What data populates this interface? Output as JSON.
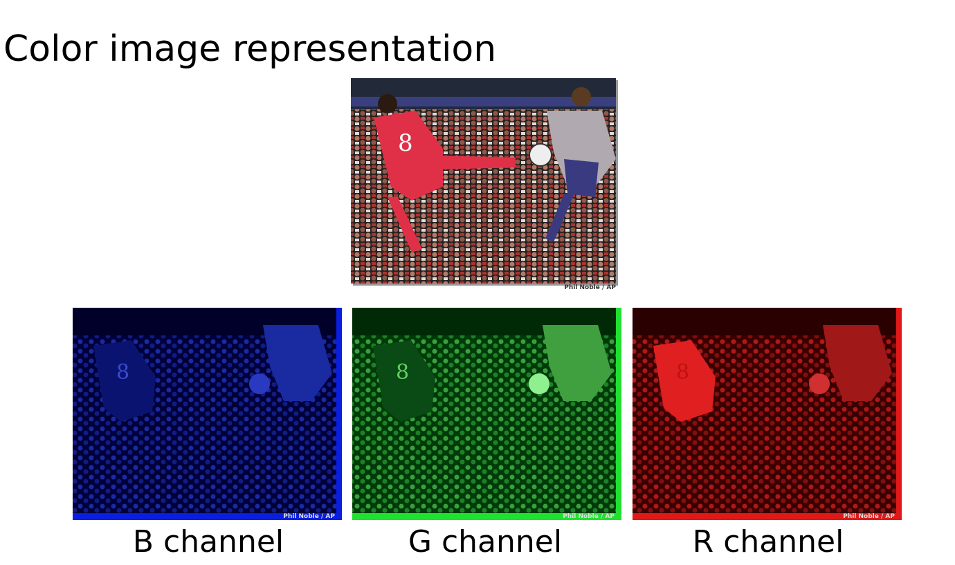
{
  "title": "Color image representation",
  "main_image": {
    "credit": "Phil Noble / AP"
  },
  "channels": [
    {
      "caption": "B channel",
      "credit": "Phil Noble / AP"
    },
    {
      "caption": "G channel",
      "credit": "Phil Noble / AP"
    },
    {
      "caption": "R channel",
      "credit": "Phil Noble / AP"
    }
  ]
}
